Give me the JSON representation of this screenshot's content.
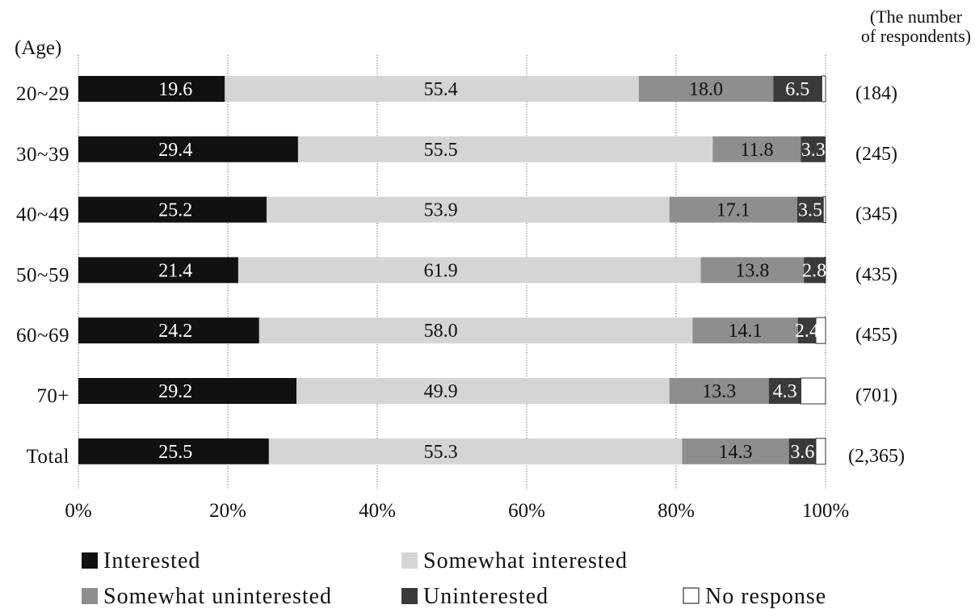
{
  "chart_data": {
    "type": "bar",
    "orientation": "horizontal",
    "stacking": "percent",
    "ylabel": "(Age)",
    "categories": [
      "20~29",
      "30~39",
      "40~49",
      "50~59",
      "60~69",
      "70+",
      "Total"
    ],
    "series": [
      {
        "name": "Interested",
        "color": "#111111",
        "data_labels": true,
        "values": [
          19.6,
          29.4,
          25.2,
          21.4,
          24.2,
          29.2,
          25.5
        ]
      },
      {
        "name": "Somewhat interested",
        "color": "#d5d5d5",
        "data_labels": true,
        "values": [
          55.4,
          55.5,
          53.9,
          61.9,
          58.0,
          49.9,
          55.3
        ]
      },
      {
        "name": "Somewhat uninterested",
        "color": "#8e8e8e",
        "data_labels": true,
        "values": [
          18.0,
          11.8,
          17.1,
          13.8,
          14.1,
          13.3,
          14.3
        ]
      },
      {
        "name": "Uninterested",
        "color": "#3a3a3a",
        "data_labels": true,
        "values": [
          6.5,
          3.3,
          3.5,
          2.8,
          2.4,
          4.3,
          3.6
        ]
      },
      {
        "name": "No response",
        "color": "#ffffff",
        "data_labels": false,
        "values": [
          0.5,
          0.0,
          0.3,
          0.1,
          1.3,
          3.3,
          1.3
        ]
      }
    ],
    "xlim": [
      0,
      100
    ],
    "xticks": [
      0,
      20,
      40,
      60,
      80,
      100
    ],
    "xtick_labels": [
      "0%",
      "20%",
      "40%",
      "60%",
      "80%",
      "100%"
    ],
    "grid": true,
    "respondents_header": [
      "(The number",
      "of respondents)"
    ],
    "respondents": [
      "(184)",
      "(245)",
      "(345)",
      "(435)",
      "(455)",
      "(701)",
      "(2,365)"
    ],
    "legend_position": "bottom"
  }
}
